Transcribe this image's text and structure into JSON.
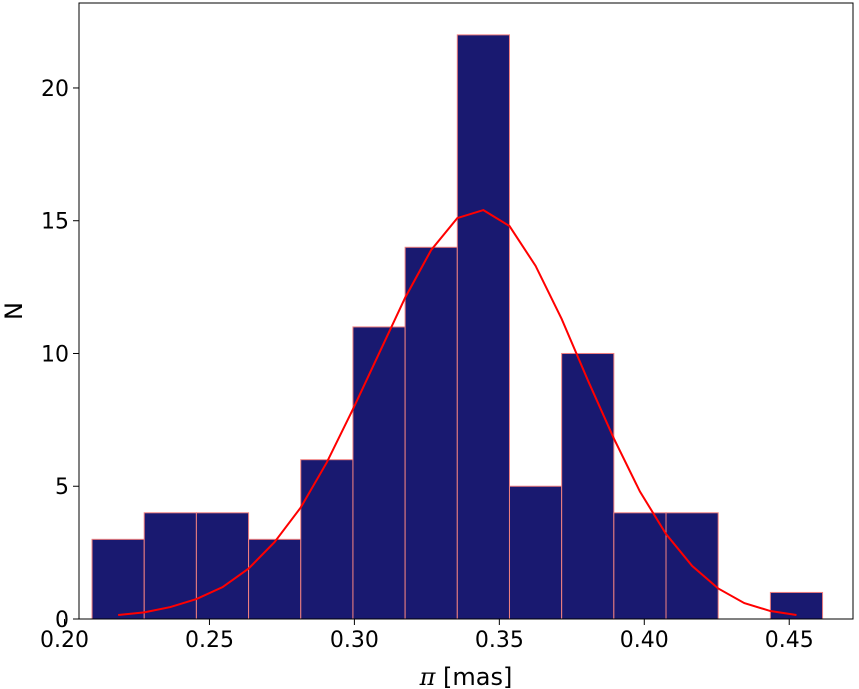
{
  "chart_data": {
    "type": "bar",
    "subtype": "histogram",
    "xlabel_symbol": "π",
    "xlabel_unit": "[mas]",
    "ylabel": "N",
    "xlim": [
      0.205,
      0.472
    ],
    "ylim": [
      0,
      23.2
    ],
    "x_ticks": [
      0.2,
      0.25,
      0.3,
      0.35,
      0.4,
      0.45
    ],
    "x_tick_labels": [
      "0.20",
      "0.25",
      "0.30",
      "0.35",
      "0.40",
      "0.45"
    ],
    "y_ticks": [
      0,
      5,
      10,
      15,
      20
    ],
    "y_tick_labels": [
      "0",
      "5",
      "10",
      "15",
      "20"
    ],
    "bin_edges": [
      0.2095,
      0.2275,
      0.2455,
      0.2635,
      0.2815,
      0.2995,
      0.3175,
      0.3355,
      0.3535,
      0.3715,
      0.3895,
      0.4075,
      0.4255,
      0.4435,
      0.4615
    ],
    "counts": [
      3,
      4,
      4,
      3,
      6,
      11,
      14,
      22,
      5,
      10,
      4,
      4,
      0,
      1
    ],
    "bar_color": "#191970",
    "bar_edge_color": "#f08080",
    "fit_curve": {
      "color": "#ff0000",
      "x": [
        0.2185,
        0.2275,
        0.2365,
        0.2455,
        0.2545,
        0.2635,
        0.2725,
        0.2815,
        0.2905,
        0.2995,
        0.3085,
        0.3175,
        0.3265,
        0.3355,
        0.3445,
        0.3535,
        0.3625,
        0.3715,
        0.3805,
        0.3895,
        0.3985,
        0.4075,
        0.4165,
        0.4255,
        0.4345,
        0.4435,
        0.4525
      ],
      "y": [
        0.15,
        0.25,
        0.45,
        0.75,
        1.2,
        1.9,
        2.9,
        4.2,
        5.9,
        7.9,
        10.0,
        12.1,
        13.9,
        15.1,
        15.4,
        14.8,
        13.3,
        11.3,
        9.0,
        6.8,
        4.8,
        3.2,
        2.0,
        1.15,
        0.6,
        0.3,
        0.15
      ]
    },
    "grid": false,
    "legend": false
  }
}
